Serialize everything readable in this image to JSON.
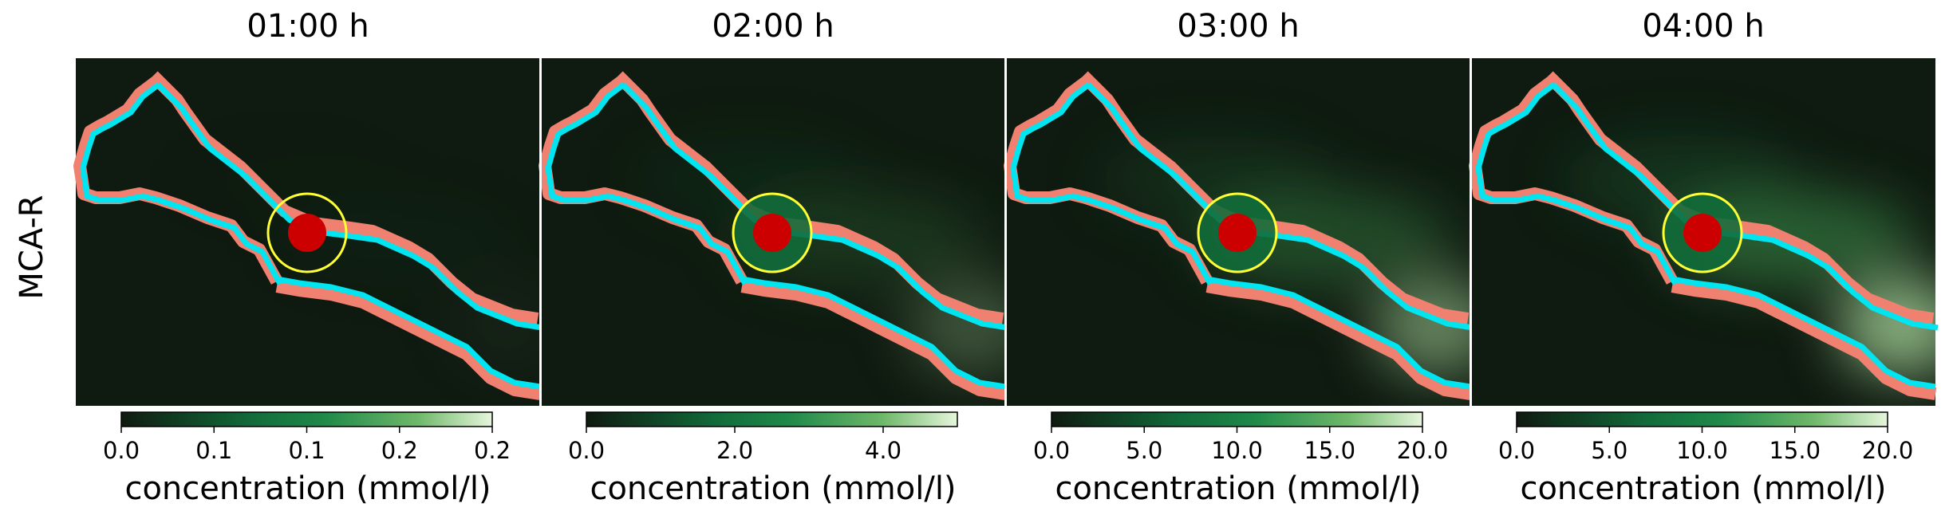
{
  "figure": {
    "row_label": "MCA-R",
    "colorbar_label": "concentration (mmol/l)"
  },
  "colors": {
    "background": "#0f1a10",
    "outer_contour": "#f08070",
    "inner_contour": "#00e5f0",
    "ring": "#ffff33",
    "core": "#cc0000"
  },
  "chart_data": [
    {
      "type": "heatmap",
      "title": "01:00 h",
      "xlabel": "concentration (mmol/l)",
      "colorbar_range": [
        0.0,
        0.2
      ],
      "colorbar_ticks": [
        "0.0",
        "0.1",
        "0.1",
        "0.2",
        "0.2"
      ],
      "colorbar_tick_values": [
        0.0,
        0.05,
        0.1,
        0.15,
        0.2
      ],
      "intensity": 0.05
    },
    {
      "type": "heatmap",
      "title": "02:00 h",
      "xlabel": "concentration (mmol/l)",
      "colorbar_range": [
        0.0,
        5.0
      ],
      "colorbar_ticks": [
        "0.0",
        "2.0",
        "4.0"
      ],
      "colorbar_tick_values": [
        0.0,
        2.0,
        4.0
      ],
      "intensity": 0.35
    },
    {
      "type": "heatmap",
      "title": "03:00 h",
      "xlabel": "concentration (mmol/l)",
      "colorbar_range": [
        0.0,
        20.0
      ],
      "colorbar_ticks": [
        "0.0",
        "5.0",
        "10.0",
        "15.0",
        "20.0"
      ],
      "colorbar_tick_values": [
        0.0,
        5.0,
        10.0,
        15.0,
        20.0
      ],
      "intensity": 0.65
    },
    {
      "type": "heatmap",
      "title": "04:00 h",
      "xlabel": "concentration (mmol/l)",
      "colorbar_range": [
        0.0,
        20.0
      ],
      "colorbar_ticks": [
        "0.0",
        "5.0",
        "10.0",
        "15.0",
        "20.0"
      ],
      "colorbar_tick_values": [
        0.0,
        5.0,
        10.0,
        15.0,
        20.0
      ],
      "intensity": 0.9
    }
  ]
}
